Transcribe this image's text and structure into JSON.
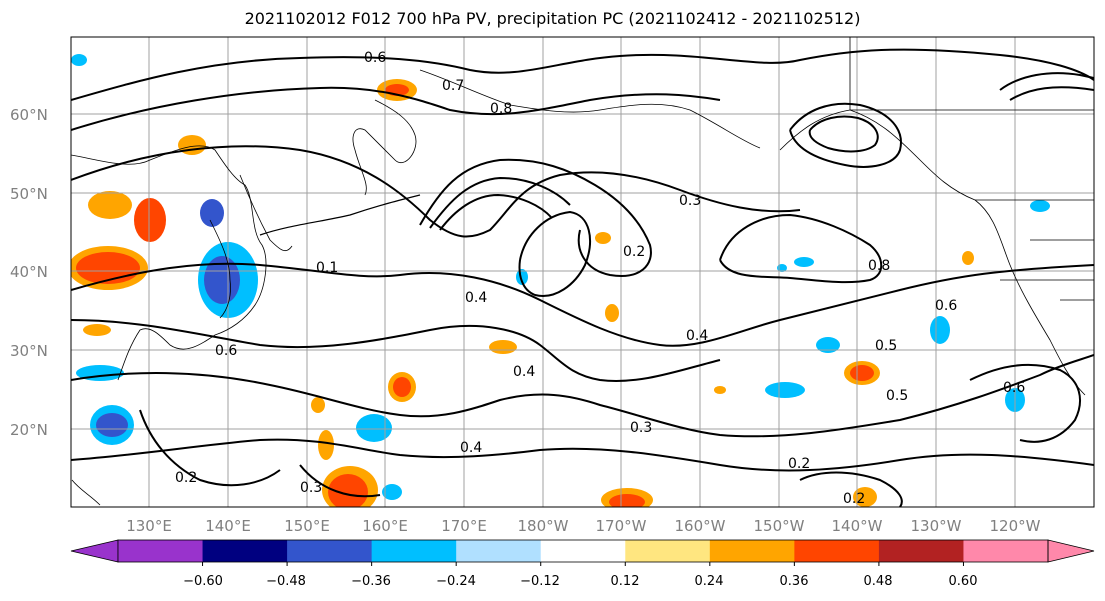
{
  "title": "2021102012 F012 700 hPa PV, precipitation PC (2021102412 - 2021102512)",
  "latitude_labels": [
    "60°N",
    "50°N",
    "40°N",
    "30°N",
    "20°N"
  ],
  "longitude_labels": [
    "130°E",
    "140°E",
    "150°E",
    "160°E",
    "170°E",
    "180°W",
    "170°W",
    "160°W",
    "150°W",
    "140°W",
    "130°W",
    "120°W"
  ],
  "contour_labels": [
    "0.6",
    "0.7",
    "0.8",
    "0.4",
    "0.3",
    "0.2",
    "0.5",
    "0.1",
    "0.6",
    "0.4",
    "0.8",
    "0.6",
    "0.4",
    "0.5",
    "0.6",
    "0.2",
    "0.3",
    "0.4",
    "0.2",
    "0.3",
    "0.2"
  ],
  "colorbar": {
    "ticks": [
      "−0.60",
      "−0.48",
      "−0.36",
      "−0.24",
      "−0.12",
      "0.12",
      "0.24",
      "0.36",
      "0.48",
      "0.60"
    ],
    "colors": [
      "#9933cc",
      "#000080",
      "#3355cc",
      "#00bfff",
      "#b0e0ff",
      "#ffffff",
      "#ffe680",
      "#ffa500",
      "#ff4500",
      "#b22222",
      "#ff88aa"
    ]
  }
}
